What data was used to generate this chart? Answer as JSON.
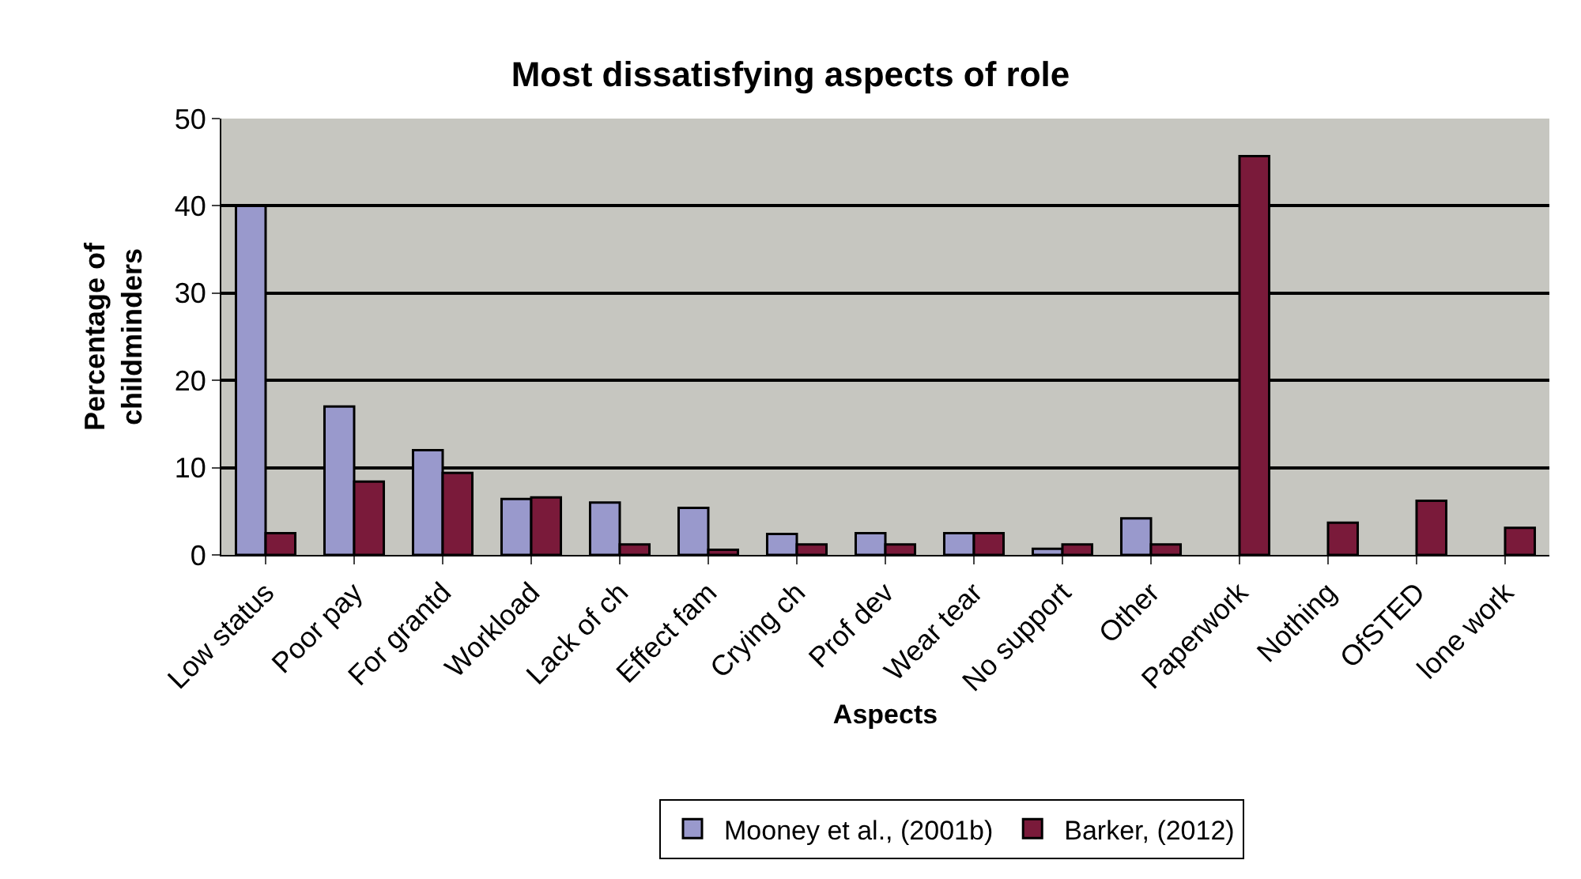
{
  "chart_data": {
    "type": "bar",
    "title": "Most dissatisfying aspects of role",
    "xlabel": "Aspects",
    "ylabel": "Percentage of\nchildminders",
    "categories": [
      "Low status",
      "Poor pay",
      "For grantd",
      "Workload",
      "Lack of ch",
      "Effect fam",
      "Crying ch",
      "Prof dev",
      "Wear tear",
      "No support",
      "Other",
      "Paperwork",
      "Nothing",
      "OfSTED",
      "lone work"
    ],
    "series": [
      {
        "name": "Mooney et al., (2001b)",
        "color": "#9999cc",
        "values": [
          40,
          17,
          12,
          6.4,
          6,
          5.4,
          2.4,
          2.5,
          2.5,
          0.7,
          4.2,
          null,
          null,
          null,
          null
        ]
      },
      {
        "name": "Barker, (2012)",
        "color": "#7a1a3a",
        "values": [
          2.5,
          8.4,
          9.4,
          6.6,
          1.2,
          0.6,
          1.2,
          1.2,
          2.5,
          1.2,
          1.2,
          45.7,
          3.7,
          6.2,
          3.1
        ]
      }
    ],
    "ylim": [
      0,
      50
    ],
    "yticks": [
      0,
      10,
      20,
      30,
      40,
      50
    ],
    "grid": "y",
    "legend": "bottom"
  }
}
